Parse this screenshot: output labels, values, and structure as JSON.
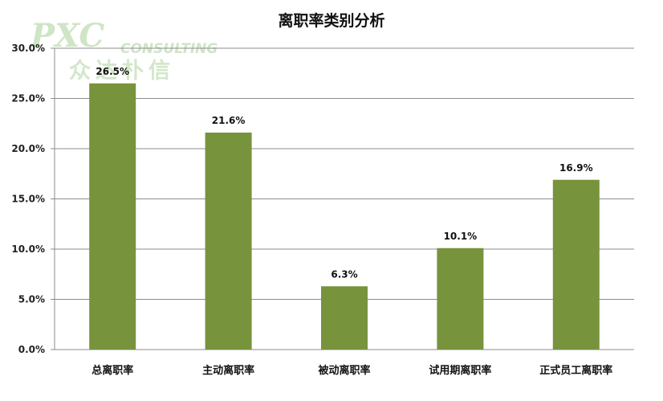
{
  "watermark": {
    "brand": "PXC",
    "sub": "CONSULTING",
    "cn": "众达朴信"
  },
  "colors": {
    "bar": "#77933c",
    "grid": "#8c8c8c"
  },
  "chart_data": {
    "type": "bar",
    "title": "离职率类别分析",
    "categories": [
      "总离职率",
      "主动离职率",
      "被动离职率",
      "试用期离职率",
      "正式员工离职率"
    ],
    "values": [
      26.5,
      21.6,
      6.3,
      10.1,
      16.9
    ],
    "data_labels": [
      "26.5%",
      "21.6%",
      "6.3%",
      "10.1%",
      "16.9%"
    ],
    "ylim": [
      0,
      30
    ],
    "yticks": [
      0,
      5,
      10,
      15,
      20,
      25,
      30
    ],
    "ytick_labels": [
      "0.0%",
      "5.0%",
      "10.0%",
      "15.0%",
      "20.0%",
      "25.0%",
      "30.0%"
    ],
    "grid": true,
    "legend": "none",
    "xlabel": "",
    "ylabel": ""
  }
}
